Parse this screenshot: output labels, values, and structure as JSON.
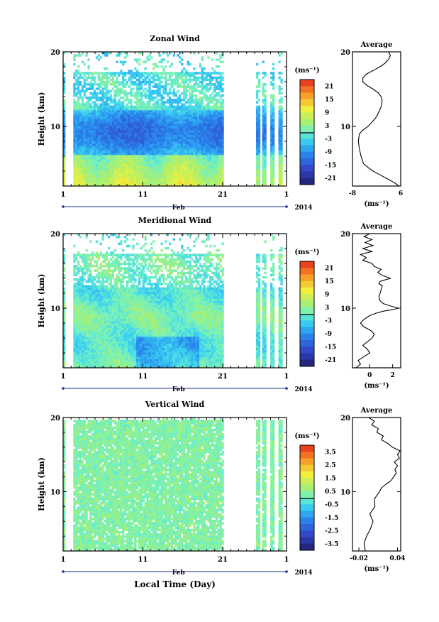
{
  "chart_data": [
    {
      "type": "heatmap",
      "title": "Zonal Wind",
      "ylabel": "Height (km)",
      "ylim": [
        2,
        20
      ],
      "y_ticks": [
        "20",
        "10"
      ],
      "x_ticks": [
        "1",
        "11",
        "21",
        "1"
      ],
      "x_month_label": "Feb",
      "year_label": "2014",
      "colorbar_unit": "(ms⁻¹)",
      "colorbar_ticks": [
        "21",
        "15",
        "9",
        "3",
        "-3",
        "-9",
        "-15",
        "-21"
      ],
      "colorbar_range": [
        -24,
        24
      ],
      "data_gap_days": [
        [
          1.2,
          2.2
        ],
        [
          21,
          25
        ]
      ],
      "profile": {
        "title": "Average",
        "xlabel": "(ms⁻¹)",
        "x_ticks": [
          "-8",
          "6"
        ],
        "xlim": [
          -8,
          6
        ],
        "points": [
          [
            5.5,
            2
          ],
          [
            4,
            2.5
          ],
          [
            2,
            3
          ],
          [
            0,
            3.5
          ],
          [
            -2,
            4
          ],
          [
            -3.5,
            4.5
          ],
          [
            -4.8,
            5
          ],
          [
            -5.5,
            6
          ],
          [
            -6,
            7
          ],
          [
            -6.3,
            8
          ],
          [
            -6,
            9
          ],
          [
            -5,
            9.5
          ],
          [
            -3.5,
            10
          ],
          [
            -2.5,
            10.5
          ],
          [
            -1.5,
            11
          ],
          [
            -0.8,
            11.5
          ],
          [
            -0.3,
            12
          ],
          [
            0.2,
            12.5
          ],
          [
            0.5,
            13
          ],
          [
            0.6,
            13.5
          ],
          [
            0.3,
            14
          ],
          [
            -0.5,
            14.5
          ],
          [
            -2,
            15
          ],
          [
            -3.8,
            15.5
          ],
          [
            -5,
            16
          ],
          [
            -5,
            16.5
          ],
          [
            -4,
            17
          ],
          [
            -2,
            17.5
          ],
          [
            0,
            18
          ],
          [
            1.5,
            18.5
          ],
          [
            2.5,
            19
          ],
          [
            3,
            19.5
          ],
          [
            2.5,
            20
          ]
        ]
      }
    },
    {
      "type": "heatmap",
      "title": "Meridional Wind",
      "ylabel": "Height (km)",
      "ylim": [
        2,
        20
      ],
      "y_ticks": [
        "20",
        "10"
      ],
      "x_ticks": [
        "1",
        "11",
        "21",
        "1"
      ],
      "x_month_label": "Feb",
      "year_label": "2014",
      "colorbar_unit": "(ms⁻¹)",
      "colorbar_ticks": [
        "21",
        "15",
        "9",
        "3",
        "-3",
        "-9",
        "-15",
        "-21"
      ],
      "colorbar_range": [
        -24,
        24
      ],
      "data_gap_days": [
        [
          1.2,
          2.2
        ],
        [
          21,
          25
        ]
      ],
      "profile": {
        "title": "Average",
        "xlabel": "(ms⁻¹)",
        "x_ticks": [
          "0",
          "2"
        ],
        "xlim": [
          -1.5,
          2.7
        ],
        "points": [
          [
            -1.2,
            2
          ],
          [
            -0.8,
            2.5
          ],
          [
            -1,
            3
          ],
          [
            -0.5,
            3.5
          ],
          [
            0,
            4
          ],
          [
            -0.2,
            4.5
          ],
          [
            -0.6,
            5
          ],
          [
            0.2,
            6
          ],
          [
            0.4,
            6.5
          ],
          [
            0.1,
            7
          ],
          [
            -0.5,
            7.5
          ],
          [
            -0.8,
            8
          ],
          [
            -0.5,
            8.5
          ],
          [
            0,
            9
          ],
          [
            0.5,
            9.3
          ],
          [
            1.2,
            9.6
          ],
          [
            2,
            9.8
          ],
          [
            2.5,
            10
          ],
          [
            1.8,
            10.3
          ],
          [
            1.2,
            10.6
          ],
          [
            0.9,
            11
          ],
          [
            0.8,
            11.5
          ],
          [
            0.9,
            12
          ],
          [
            1,
            12.5
          ],
          [
            1.1,
            13
          ],
          [
            0.8,
            13.3
          ],
          [
            0.9,
            13.6
          ],
          [
            1.8,
            14
          ],
          [
            1.1,
            14.4
          ],
          [
            0.7,
            14.8
          ],
          [
            1,
            15.2
          ],
          [
            0.4,
            15.6
          ],
          [
            0.2,
            16
          ],
          [
            -0.6,
            16.4
          ],
          [
            -0.3,
            16.8
          ],
          [
            -0.8,
            17.2
          ],
          [
            0.2,
            17.6
          ],
          [
            -0.6,
            18
          ],
          [
            0.3,
            18.4
          ],
          [
            -0.4,
            18.8
          ],
          [
            0.2,
            19.2
          ],
          [
            -0.5,
            19.6
          ],
          [
            0,
            20
          ]
        ]
      }
    },
    {
      "type": "heatmap",
      "title": "Vertical Wind",
      "ylabel": "Height (km)",
      "xlabel": "Local Time (Day)",
      "ylim": [
        2,
        20
      ],
      "y_ticks": [
        "20",
        "10"
      ],
      "x_ticks": [
        "1",
        "11",
        "21",
        "1"
      ],
      "x_month_label": "Feb",
      "year_label": "2014",
      "colorbar_unit": "(ms⁻¹)",
      "colorbar_ticks": [
        "3.5",
        "2.5",
        "1.5",
        "0.5",
        "-0.5",
        "-1.5",
        "-2.5",
        "-3.5"
      ],
      "colorbar_range": [
        -4,
        4
      ],
      "data_gap_days": [
        [
          1.2,
          2.2
        ],
        [
          21,
          25
        ]
      ],
      "profile": {
        "title": "Average",
        "xlabel": "(ms⁻¹)",
        "x_ticks": [
          "-0.02",
          "0.04"
        ],
        "xlim": [
          -0.03,
          0.045
        ],
        "points": [
          [
            -0.01,
            2
          ],
          [
            -0.012,
            3
          ],
          [
            -0.008,
            4
          ],
          [
            -0.002,
            5
          ],
          [
            0.002,
            6
          ],
          [
            -0.003,
            7
          ],
          [
            0.005,
            8
          ],
          [
            0.004,
            9
          ],
          [
            0.012,
            10
          ],
          [
            0.015,
            10.5
          ],
          [
            0.022,
            11
          ],
          [
            0.03,
            11.5
          ],
          [
            0.034,
            12
          ],
          [
            0.038,
            12.5
          ],
          [
            0.036,
            13
          ],
          [
            0.04,
            13.5
          ],
          [
            0.035,
            14
          ],
          [
            0.043,
            14.5
          ],
          [
            0.04,
            15
          ],
          [
            0.044,
            15.5
          ],
          [
            0.032,
            16
          ],
          [
            0.025,
            16.5
          ],
          [
            0.015,
            17
          ],
          [
            0.018,
            17.5
          ],
          [
            0.008,
            18
          ],
          [
            0.01,
            18.5
          ],
          [
            0.0,
            19
          ],
          [
            0.004,
            19.5
          ],
          [
            -0.005,
            20
          ]
        ]
      }
    }
  ]
}
